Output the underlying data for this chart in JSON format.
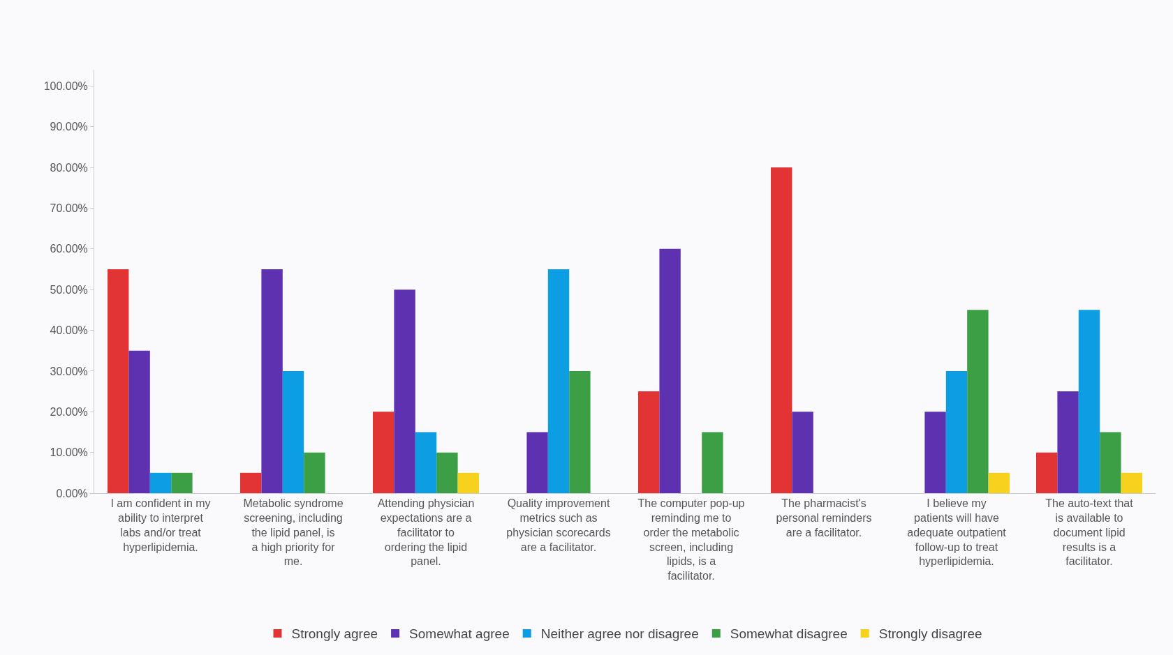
{
  "chart_data": {
    "type": "bar",
    "categories": [
      "I am confident in my ability to interpret labs and/or treat hyperlipidemia.",
      "Metabolic syndrome screening, including the lipid panel, is a high priority for me.",
      "Attending physician expectations are a facilitator to ordering the lipid panel.",
      "Quality improvement metrics such as physician scorecards are a facilitator.",
      "The computer pop-up reminding me to order the metabolic screen, including lipids, is a facilitator.",
      "The pharmacist's personal reminders are a facilitator.",
      "I believe my patients will have adequate outpatient follow-up to treat hyperlipidemia.",
      "The auto-text that is available to document lipid results is a facilitator."
    ],
    "series": [
      {
        "name": "Strongly agree",
        "color": "#e23434",
        "values": [
          55,
          5,
          20,
          0,
          25,
          80,
          0,
          10
        ]
      },
      {
        "name": "Somewhat agree",
        "color": "#5d31b0",
        "values": [
          35,
          55,
          50,
          15,
          60,
          20,
          20,
          25
        ]
      },
      {
        "name": "Neither agree nor disagree",
        "color": "#0c9de2",
        "values": [
          5,
          30,
          15,
          55,
          0,
          0,
          30,
          45
        ]
      },
      {
        "name": "Somewhat disagree",
        "color": "#3c9f45",
        "values": [
          5,
          10,
          10,
          30,
          15,
          0,
          45,
          15
        ]
      },
      {
        "name": "Strongly disagree",
        "color": "#f6d21f",
        "values": [
          0,
          0,
          5,
          0,
          0,
          0,
          5,
          5
        ]
      }
    ],
    "ylim": [
      0,
      104
    ],
    "yticks": [
      {
        "value": 0,
        "label": "0.00%"
      },
      {
        "value": 10,
        "label": "10.00%"
      },
      {
        "value": 20,
        "label": "20.00%"
      },
      {
        "value": 30,
        "label": "30.00%"
      },
      {
        "value": 40,
        "label": "40.00%"
      },
      {
        "value": 50,
        "label": "50.00%"
      },
      {
        "value": 60,
        "label": "60.00%"
      },
      {
        "value": 70,
        "label": "70.00%"
      },
      {
        "value": 80,
        "label": "80.00%"
      },
      {
        "value": 90,
        "label": "90.00%"
      },
      {
        "value": 100,
        "label": "100.00%"
      }
    ],
    "grid": false,
    "legend": "bottom"
  }
}
